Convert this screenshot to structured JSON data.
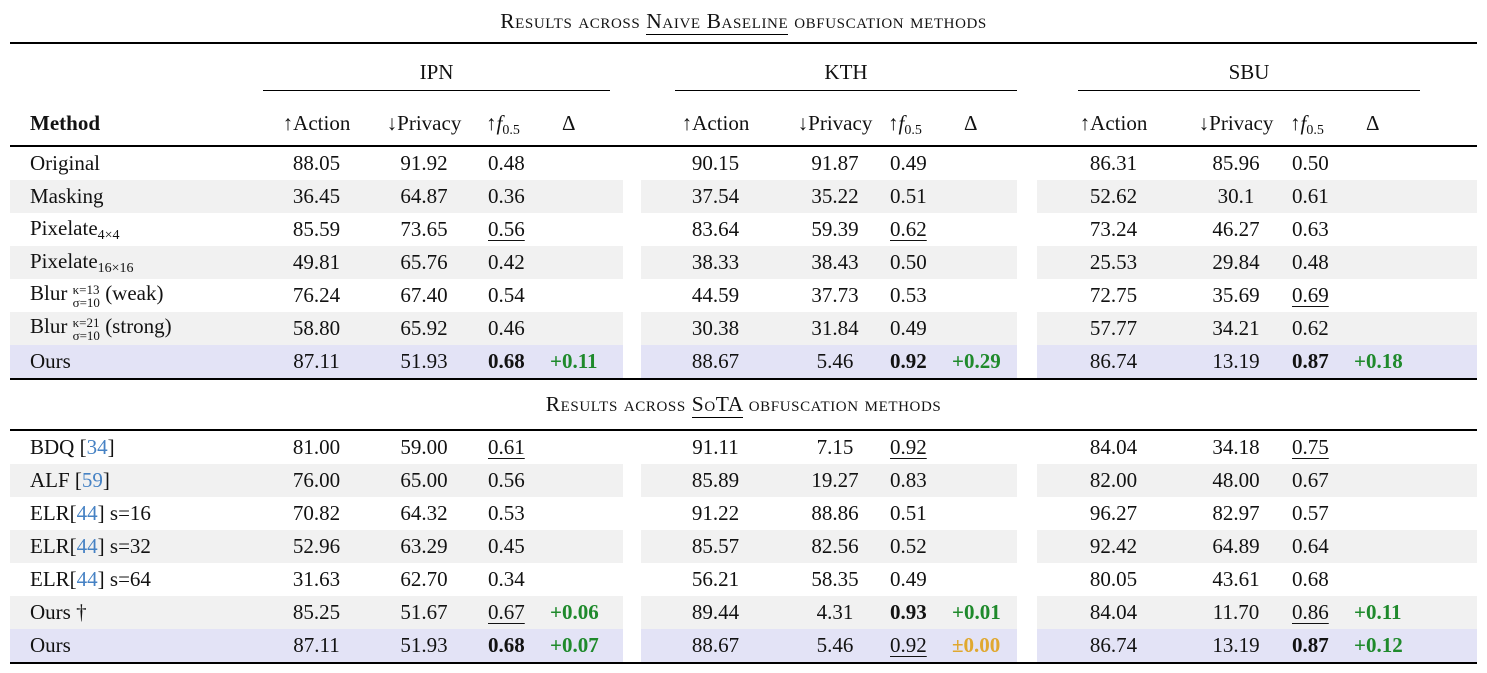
{
  "colors": {
    "stripe": "#f1f1f1",
    "highlight": "#e3e3f6",
    "positive": "#1f8a2c",
    "neutral_zero": "#e0a830",
    "citation": "#4682c4"
  },
  "header": {
    "method_label": "Method",
    "groups": [
      "IPN",
      "KTH",
      "SBU"
    ],
    "action": {
      "arrow": "↑",
      "label": "Action"
    },
    "privacy": {
      "arrow": "↓",
      "label": "Privacy"
    },
    "fscore": {
      "arrow": "↑",
      "letter": "f",
      "sub": "0.5"
    },
    "delta_label": "Δ"
  },
  "sections": [
    {
      "title": {
        "pre": "Results across ",
        "mark": "Naive Baseline",
        "post": " obfuscation methods"
      },
      "rows": [
        {
          "shade": "plain",
          "method": [
            {
              "t": "text",
              "v": "Original"
            }
          ],
          "groups": [
            {
              "a": "88.05",
              "p": "91.92",
              "f": "0.48",
              "fs": "plain",
              "d": "",
              "ds": ""
            },
            {
              "a": "90.15",
              "p": "91.87",
              "f": "0.49",
              "fs": "plain",
              "d": "",
              "ds": ""
            },
            {
              "a": "86.31",
              "p": "85.96",
              "f": "0.50",
              "fs": "plain",
              "d": "",
              "ds": ""
            }
          ]
        },
        {
          "shade": "stripe",
          "method": [
            {
              "t": "text",
              "v": "Masking"
            }
          ],
          "groups": [
            {
              "a": "36.45",
              "p": "64.87",
              "f": "0.36",
              "fs": "plain",
              "d": "",
              "ds": ""
            },
            {
              "a": "37.54",
              "p": "35.22",
              "f": "0.51",
              "fs": "plain",
              "d": "",
              "ds": ""
            },
            {
              "a": "52.62",
              "p": "30.1",
              "f": "0.61",
              "fs": "plain",
              "d": "",
              "ds": ""
            }
          ]
        },
        {
          "shade": "plain",
          "method": [
            {
              "t": "text",
              "v": "Pixelate"
            },
            {
              "t": "sub",
              "v": "4×4"
            }
          ],
          "groups": [
            {
              "a": "85.59",
              "p": "73.65",
              "f": "0.56",
              "fs": "under",
              "d": "",
              "ds": ""
            },
            {
              "a": "83.64",
              "p": "59.39",
              "f": "0.62",
              "fs": "under",
              "d": "",
              "ds": ""
            },
            {
              "a": "73.24",
              "p": "46.27",
              "f": "0.63",
              "fs": "plain",
              "d": "",
              "ds": ""
            }
          ]
        },
        {
          "shade": "stripe",
          "method": [
            {
              "t": "text",
              "v": "Pixelate"
            },
            {
              "t": "sub",
              "v": "16×16"
            }
          ],
          "groups": [
            {
              "a": "49.81",
              "p": "65.76",
              "f": "0.42",
              "fs": "plain",
              "d": "",
              "ds": ""
            },
            {
              "a": "38.33",
              "p": "38.43",
              "f": "0.50",
              "fs": "plain",
              "d": "",
              "ds": ""
            },
            {
              "a": "25.53",
              "p": "29.84",
              "f": "0.48",
              "fs": "plain",
              "d": "",
              "ds": ""
            }
          ]
        },
        {
          "shade": "plain",
          "method": [
            {
              "t": "text",
              "v": "Blur "
            },
            {
              "t": "stack",
              "top": "κ=13",
              "bot": "σ=10"
            },
            {
              "t": "text",
              "v": " (weak)"
            }
          ],
          "groups": [
            {
              "a": "76.24",
              "p": "67.40",
              "f": "0.54",
              "fs": "plain",
              "d": "",
              "ds": ""
            },
            {
              "a": "44.59",
              "p": "37.73",
              "f": "0.53",
              "fs": "plain",
              "d": "",
              "ds": ""
            },
            {
              "a": "72.75",
              "p": "35.69",
              "f": "0.69",
              "fs": "under",
              "d": "",
              "ds": ""
            }
          ]
        },
        {
          "shade": "stripe",
          "method": [
            {
              "t": "text",
              "v": "Blur "
            },
            {
              "t": "stack",
              "top": "κ=21",
              "bot": "σ=10"
            },
            {
              "t": "text",
              "v": " (strong)"
            }
          ],
          "groups": [
            {
              "a": "58.80",
              "p": "65.92",
              "f": "0.46",
              "fs": "plain",
              "d": "",
              "ds": ""
            },
            {
              "a": "30.38",
              "p": "31.84",
              "f": "0.49",
              "fs": "plain",
              "d": "",
              "ds": ""
            },
            {
              "a": "57.77",
              "p": "34.21",
              "f": "0.62",
              "fs": "plain",
              "d": "",
              "ds": ""
            }
          ]
        },
        {
          "shade": "hl",
          "method": [
            {
              "t": "text",
              "v": "Ours"
            }
          ],
          "groups": [
            {
              "a": "87.11",
              "p": "51.93",
              "f": "0.68",
              "fs": "bold",
              "d": "+0.11",
              "ds": "pos"
            },
            {
              "a": "88.67",
              "p": "5.46",
              "f": "0.92",
              "fs": "bold",
              "d": "+0.29",
              "ds": "pos"
            },
            {
              "a": "86.74",
              "p": "13.19",
              "f": "0.87",
              "fs": "bold",
              "d": "+0.18",
              "ds": "pos"
            }
          ]
        }
      ]
    },
    {
      "title": {
        "pre": "Results across ",
        "mark": "SoTA",
        "post": " obfuscation methods"
      },
      "rows": [
        {
          "shade": "plain",
          "method": [
            {
              "t": "text",
              "v": "BDQ ["
            },
            {
              "t": "cite",
              "v": "34"
            },
            {
              "t": "text",
              "v": "]"
            }
          ],
          "groups": [
            {
              "a": "81.00",
              "p": "59.00",
              "f": "0.61",
              "fs": "under",
              "d": "",
              "ds": ""
            },
            {
              "a": "91.11",
              "p": "7.15",
              "f": "0.92",
              "fs": "under",
              "d": "",
              "ds": ""
            },
            {
              "a": "84.04",
              "p": "34.18",
              "f": "0.75",
              "fs": "under",
              "d": "",
              "ds": ""
            }
          ]
        },
        {
          "shade": "stripe",
          "method": [
            {
              "t": "text",
              "v": "ALF ["
            },
            {
              "t": "cite",
              "v": "59"
            },
            {
              "t": "text",
              "v": "]"
            }
          ],
          "groups": [
            {
              "a": "76.00",
              "p": "65.00",
              "f": "0.56",
              "fs": "plain",
              "d": "",
              "ds": ""
            },
            {
              "a": "85.89",
              "p": "19.27",
              "f": "0.83",
              "fs": "plain",
              "d": "",
              "ds": ""
            },
            {
              "a": "82.00",
              "p": "48.00",
              "f": "0.67",
              "fs": "plain",
              "d": "",
              "ds": ""
            }
          ]
        },
        {
          "shade": "plain",
          "method": [
            {
              "t": "text",
              "v": "ELR["
            },
            {
              "t": "cite",
              "v": "44"
            },
            {
              "t": "text",
              "v": "] s=16"
            }
          ],
          "groups": [
            {
              "a": "70.82",
              "p": "64.32",
              "f": "0.53",
              "fs": "plain",
              "d": "",
              "ds": ""
            },
            {
              "a": "91.22",
              "p": "88.86",
              "f": "0.51",
              "fs": "plain",
              "d": "",
              "ds": ""
            },
            {
              "a": "96.27",
              "p": "82.97",
              "f": "0.57",
              "fs": "plain",
              "d": "",
              "ds": ""
            }
          ]
        },
        {
          "shade": "stripe",
          "method": [
            {
              "t": "text",
              "v": "ELR["
            },
            {
              "t": "cite",
              "v": "44"
            },
            {
              "t": "text",
              "v": "] s=32"
            }
          ],
          "groups": [
            {
              "a": "52.96",
              "p": "63.29",
              "f": "0.45",
              "fs": "plain",
              "d": "",
              "ds": ""
            },
            {
              "a": "85.57",
              "p": "82.56",
              "f": "0.52",
              "fs": "plain",
              "d": "",
              "ds": ""
            },
            {
              "a": "92.42",
              "p": "64.89",
              "f": "0.64",
              "fs": "plain",
              "d": "",
              "ds": ""
            }
          ]
        },
        {
          "shade": "plain",
          "method": [
            {
              "t": "text",
              "v": "ELR["
            },
            {
              "t": "cite",
              "v": "44"
            },
            {
              "t": "text",
              "v": "] s=64"
            }
          ],
          "groups": [
            {
              "a": "31.63",
              "p": "62.70",
              "f": "0.34",
              "fs": "plain",
              "d": "",
              "ds": ""
            },
            {
              "a": "56.21",
              "p": "58.35",
              "f": "0.49",
              "fs": "plain",
              "d": "",
              "ds": ""
            },
            {
              "a": "80.05",
              "p": "43.61",
              "f": "0.68",
              "fs": "plain",
              "d": "",
              "ds": ""
            }
          ]
        },
        {
          "shade": "stripe",
          "method": [
            {
              "t": "text",
              "v": "Ours †"
            }
          ],
          "groups": [
            {
              "a": "85.25",
              "p": "51.67",
              "f": "0.67",
              "fs": "under",
              "d": "+0.06",
              "ds": "pos"
            },
            {
              "a": "89.44",
              "p": "4.31",
              "f": "0.93",
              "fs": "bold",
              "d": "+0.01",
              "ds": "pos"
            },
            {
              "a": "84.04",
              "p": "11.70",
              "f": "0.86",
              "fs": "under",
              "d": "+0.11",
              "ds": "pos"
            }
          ]
        },
        {
          "shade": "hl",
          "method": [
            {
              "t": "text",
              "v": "Ours"
            }
          ],
          "groups": [
            {
              "a": "87.11",
              "p": "51.93",
              "f": "0.68",
              "fs": "bold",
              "d": "+0.07",
              "ds": "pos"
            },
            {
              "a": "88.67",
              "p": "5.46",
              "f": "0.92",
              "fs": "under",
              "d": "±0.00",
              "ds": "zero"
            },
            {
              "a": "86.74",
              "p": "13.19",
              "f": "0.87",
              "fs": "bold",
              "d": "+0.12",
              "ds": "pos"
            }
          ]
        }
      ]
    }
  ]
}
